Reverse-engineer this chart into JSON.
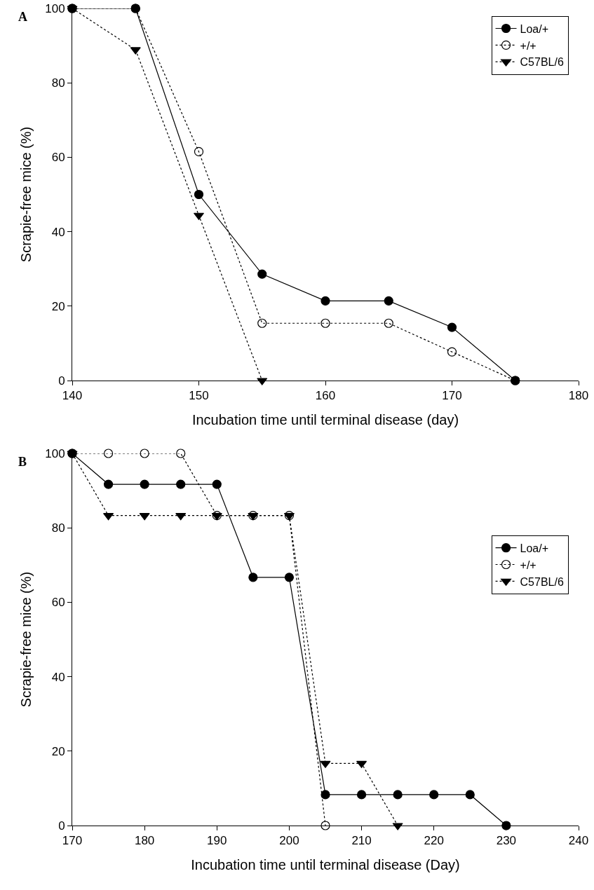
{
  "chart_data": [
    {
      "type": "line",
      "xlabel": "Incubation time until terminal disease (day)",
      "ylabel": "Scrapie-free mice (%)",
      "annotations": [
        "A"
      ],
      "xlim": [
        140,
        180
      ],
      "xticks": [
        140,
        150,
        160,
        170,
        180
      ],
      "ylim": [
        0,
        100
      ],
      "yticks": [
        0,
        20,
        40,
        60,
        80,
        100
      ],
      "grid": false,
      "legend": "top right",
      "series": [
        {
          "name": "Loa/+",
          "color": "#000000",
          "marker": "circle",
          "line_style": "solid",
          "x": [
            140,
            145,
            150,
            155,
            160,
            165,
            170,
            175
          ],
          "values": [
            100,
            100,
            50,
            28.6,
            21.4,
            21.4,
            14.3,
            0
          ]
        },
        {
          "name": "+/+",
          "color": "#000000",
          "marker": "circle",
          "line_style": "dotted",
          "x": [
            140,
            145,
            150,
            155,
            160,
            165,
            170,
            175
          ],
          "values": [
            100,
            100,
            61.5,
            15.4,
            15.4,
            15.4,
            7.7,
            0
          ]
        },
        {
          "name": "C57BL/6",
          "color": "#000000",
          "marker": "triangle",
          "line_style": "dotted",
          "x": [
            140,
            145,
            150,
            155
          ],
          "values": [
            100,
            88.9,
            44.4,
            0
          ]
        }
      ]
    },
    {
      "type": "line",
      "xlabel": "Incubation time until terminal disease (Day)",
      "ylabel": "Scrapie-free mice (%)",
      "annotations": [
        "B"
      ],
      "xlim": [
        170,
        240
      ],
      "xticks": [
        170,
        180,
        190,
        200,
        210,
        220,
        230,
        240
      ],
      "ylim": [
        0,
        100
      ],
      "yticks": [
        0,
        20,
        40,
        60,
        80,
        100
      ],
      "grid": false,
      "legend": "right",
      "series": [
        {
          "name": "Loa/+",
          "color": "#000000",
          "marker": "circle",
          "line_style": "solid",
          "x": [
            170,
            175,
            180,
            185,
            190,
            195,
            200,
            205,
            210,
            215,
            220,
            225,
            230
          ],
          "values": [
            100,
            91.7,
            91.7,
            91.7,
            91.7,
            66.7,
            66.7,
            8.3,
            8.3,
            8.3,
            8.3,
            8.3,
            0
          ]
        },
        {
          "name": "+/+",
          "color": "#000000",
          "marker": "circle",
          "line_style": "dotted",
          "x": [
            170,
            175,
            180,
            185,
            190,
            195,
            200,
            205
          ],
          "values": [
            100,
            100,
            100,
            100,
            83.3,
            83.3,
            83.3,
            0
          ]
        },
        {
          "name": "C57BL/6",
          "color": "#000000",
          "marker": "triangle",
          "line_style": "dotted",
          "x": [
            170,
            175,
            180,
            185,
            190,
            195,
            200,
            205,
            210,
            215
          ],
          "values": [
            100,
            83.3,
            83.3,
            83.3,
            83.3,
            83.3,
            83.3,
            16.7,
            16.7,
            0
          ]
        }
      ]
    }
  ]
}
